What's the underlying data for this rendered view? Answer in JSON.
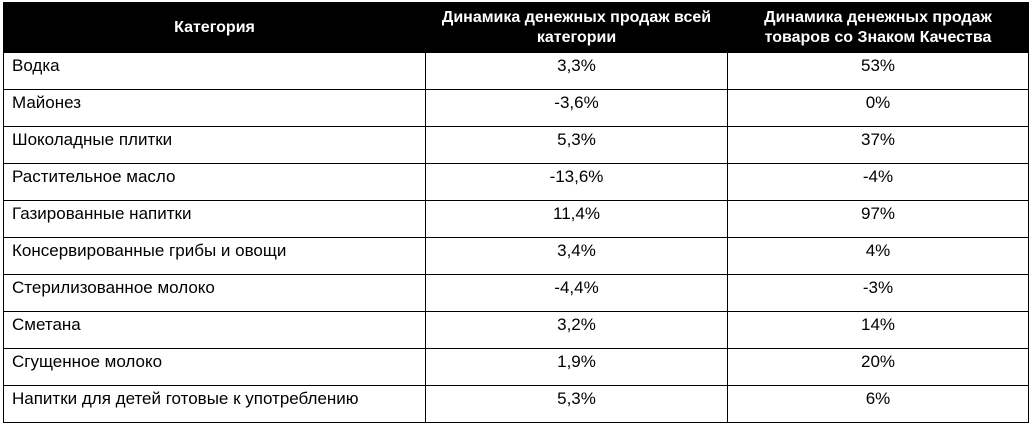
{
  "table": {
    "headers": [
      "Категория",
      "Динамика денежных продаж всей категории",
      "Динамика денежных продаж товаров со Знаком Качества"
    ],
    "rows": [
      {
        "category": "Водка",
        "total": "3,3%",
        "quality": "53%"
      },
      {
        "category": "Майонез",
        "total": "-3,6%",
        "quality": "0%"
      },
      {
        "category": "Шоколадные плитки",
        "total": "5,3%",
        "quality": "37%"
      },
      {
        "category": "Растительное масло",
        "total": "-13,6%",
        "quality": "-4%"
      },
      {
        "category": "Газированные напитки",
        "total": "11,4%",
        "quality": "97%"
      },
      {
        "category": "Консервированные грибы и овощи",
        "total": "3,4%",
        "quality": "4%"
      },
      {
        "category": "Стерилизованное молоко",
        "total": "-4,4%",
        "quality": "-3%"
      },
      {
        "category": "Сметана",
        "total": "3,2%",
        "quality": "14%"
      },
      {
        "category": "Сгущенное молоко",
        "total": "1,9%",
        "quality": "20%"
      },
      {
        "category": "Напитки для детей готовые к употреблению",
        "total": "5,3%",
        "quality": "6%"
      }
    ]
  }
}
